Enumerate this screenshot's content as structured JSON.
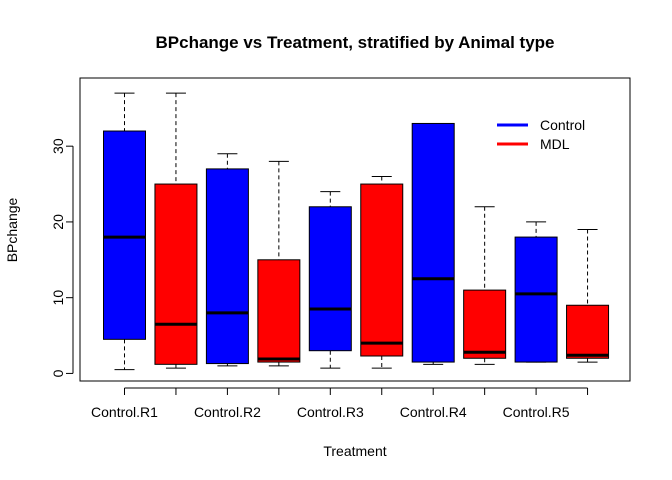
{
  "chart_data": {
    "type": "boxplot",
    "title": "BPchange vs Treatment, stratified by Animal type",
    "xlabel": "Treatment",
    "ylabel": "BPchange",
    "ylim": [
      -1,
      39
    ],
    "yticks": [
      0,
      10,
      20,
      30
    ],
    "xtick_labels": [
      "Control.R1",
      "Control.R2",
      "Control.R3",
      "Control.R4",
      "Control.R5"
    ],
    "legend": {
      "position": "top-right",
      "entries": [
        {
          "name": "Control",
          "color": "#0000ff"
        },
        {
          "name": "MDL",
          "color": "#ff0000"
        }
      ]
    },
    "boxes": [
      {
        "series": "Control",
        "group": "Control.R1",
        "min": 0.5,
        "q1": 4.5,
        "median": 18,
        "q3": 32,
        "max": 37
      },
      {
        "series": "MDL",
        "group": "Control.R1",
        "min": 0.7,
        "q1": 1.2,
        "median": 6.5,
        "q3": 25,
        "max": 37
      },
      {
        "series": "Control",
        "group": "Control.R2",
        "min": 1.0,
        "q1": 1.3,
        "median": 8,
        "q3": 27,
        "max": 29
      },
      {
        "series": "MDL",
        "group": "Control.R2",
        "min": 1.0,
        "q1": 1.5,
        "median": 1.9,
        "q3": 15,
        "max": 28
      },
      {
        "series": "Control",
        "group": "Control.R3",
        "min": 0.7,
        "q1": 3.0,
        "median": 8.5,
        "q3": 22,
        "max": 24
      },
      {
        "series": "MDL",
        "group": "Control.R3",
        "min": 0.7,
        "q1": 2.3,
        "median": 4,
        "q3": 25,
        "max": 26
      },
      {
        "series": "Control",
        "group": "Control.R4",
        "min": 1.2,
        "q1": 1.5,
        "median": 12.5,
        "q3": 33,
        "max": 33
      },
      {
        "series": "MDL",
        "group": "Control.R4",
        "min": 1.2,
        "q1": 2.0,
        "median": 2.8,
        "q3": 11,
        "max": 22
      },
      {
        "series": "Control",
        "group": "Control.R5",
        "min": 1.5,
        "q1": 1.5,
        "median": 10.5,
        "q3": 18,
        "max": 20
      },
      {
        "series": "MDL",
        "group": "Control.R5",
        "min": 1.5,
        "q1": 2.0,
        "median": 2.4,
        "q3": 9,
        "max": 19
      }
    ]
  }
}
